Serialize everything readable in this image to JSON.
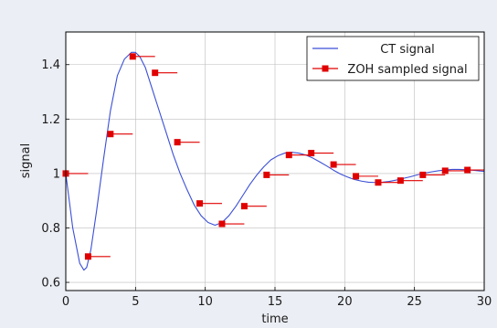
{
  "chart_data": {
    "type": "line",
    "title": "",
    "xlabel": "time",
    "ylabel": "signal",
    "xlim": [
      0,
      30
    ],
    "ylim": [
      0.57,
      1.52
    ],
    "xticks": [
      0,
      5,
      10,
      15,
      20,
      25,
      30
    ],
    "yticks": [
      0.6,
      0.8,
      1,
      1.2,
      1.4
    ],
    "ytick_labels": [
      "0.6",
      "0.8",
      "1",
      "1.2",
      "1.4"
    ],
    "grid": true,
    "legend_position": "top-right",
    "sample_period": 1.6,
    "series": [
      {
        "name": "CT signal",
        "kind": "line",
        "color": "#3b4fd6",
        "x": [
          0,
          0.5,
          1,
          1.3,
          1.5,
          1.8,
          2.2,
          2.7,
          3.2,
          3.7,
          4.2,
          4.7,
          5.0,
          5.3,
          5.7,
          6.2,
          6.7,
          7.2,
          7.7,
          8.2,
          8.7,
          9.2,
          9.7,
          10.2,
          10.7,
          11.2,
          11.7,
          12.2,
          12.7,
          13.2,
          13.7,
          14.2,
          14.7,
          15.2,
          15.7,
          16.2,
          16.7,
          17.2,
          17.7,
          18.2,
          18.7,
          19.2,
          19.7,
          20.2,
          20.7,
          21.2,
          21.7,
          22.2,
          22.7,
          23.2,
          23.7,
          24.2,
          24.7,
          25.2,
          25.7,
          26.2,
          26.7,
          27.2,
          27.7,
          28.2,
          28.7,
          29.2,
          29.7,
          30
        ],
        "y": [
          1.0,
          0.8,
          0.67,
          0.645,
          0.655,
          0.72,
          0.86,
          1.05,
          1.23,
          1.36,
          1.42,
          1.445,
          1.445,
          1.43,
          1.39,
          1.31,
          1.23,
          1.15,
          1.07,
          1.0,
          0.94,
          0.885,
          0.845,
          0.82,
          0.81,
          0.82,
          0.845,
          0.88,
          0.92,
          0.96,
          0.995,
          1.025,
          1.05,
          1.065,
          1.075,
          1.078,
          1.075,
          1.068,
          1.057,
          1.043,
          1.028,
          1.012,
          0.998,
          0.987,
          0.978,
          0.972,
          0.968,
          0.967,
          0.968,
          0.971,
          0.976,
          0.982,
          0.988,
          0.995,
          1.001,
          1.006,
          1.01,
          1.013,
          1.015,
          1.015,
          1.014,
          1.012,
          1.009,
          1.008
        ]
      },
      {
        "name": "ZOH sampled signal",
        "kind": "zoh",
        "color": "#e00000",
        "x": [
          0,
          1.6,
          3.2,
          4.8,
          6.4,
          8.0,
          9.6,
          11.2,
          12.8,
          14.4,
          16.0,
          17.6,
          19.2,
          20.8,
          22.4,
          24.0,
          25.6,
          27.2,
          28.8
        ],
        "y": [
          1.0,
          0.695,
          1.145,
          1.43,
          1.37,
          1.115,
          0.89,
          0.815,
          0.88,
          0.995,
          1.068,
          1.075,
          1.033,
          0.99,
          0.967,
          0.974,
          0.995,
          1.01,
          1.013
        ]
      }
    ]
  }
}
